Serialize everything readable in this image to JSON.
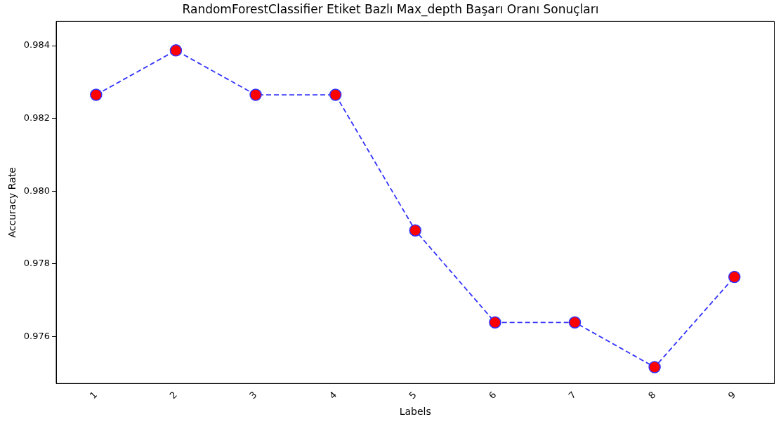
{
  "chart_data": {
    "type": "line",
    "title": "RandomForestClassifier Etiket Bazlı Max_depth Başarı Oranı Sonuçları",
    "xlabel": "Labels",
    "ylabel": "Accuracy Rate",
    "categories": [
      "1",
      "2",
      "3",
      "4",
      "5",
      "6",
      "7",
      "8",
      "9"
    ],
    "series": [
      {
        "color": "#3333ff",
        "colors": [
          "#ff0000",
          "#ff0000",
          "#ff0000",
          "#ff0000",
          "#ff0000",
          "#ff0000",
          "#ff0000",
          "#ff0000",
          "#ff0000"
        ],
        "values": [
          0.98265,
          0.98387,
          0.98265,
          0.98265,
          0.97892,
          0.97639,
          0.97639,
          0.97516,
          0.97764
        ]
      }
    ],
    "ylim": [
      0.97471,
      0.98467
    ],
    "yticks": [
      {
        "value": 0.976,
        "label": "0.976"
      },
      {
        "value": 0.978,
        "label": "0.978"
      },
      {
        "value": 0.98,
        "label": "0.980"
      },
      {
        "value": 0.982,
        "label": "0.982"
      },
      {
        "value": 0.984,
        "label": "0.984"
      }
    ],
    "grid": false,
    "legend": false,
    "marker": "circle",
    "line_style": "dashed"
  }
}
